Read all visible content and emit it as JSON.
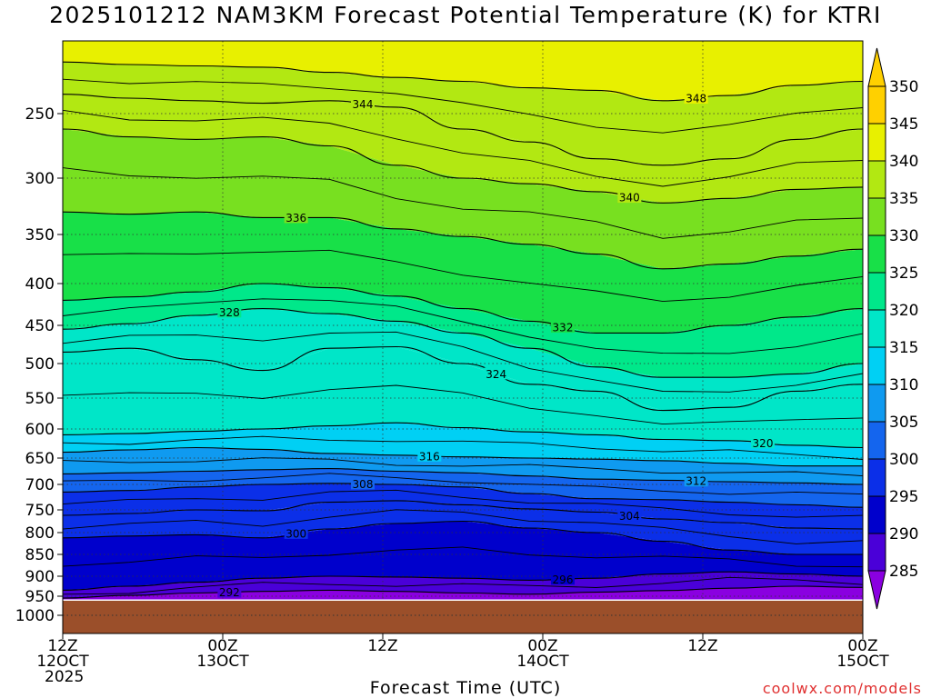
{
  "chart_data": {
    "type": "heatmap",
    "title": "2025101212 NAM3KM Forecast Potential Temperature (K) for KTRI",
    "xlabel": "Forecast Time (UTC)",
    "ylabel": "",
    "y_ticks": [
      "250",
      "300",
      "350",
      "400",
      "450",
      "500",
      "550",
      "600",
      "650",
      "700",
      "750",
      "800",
      "850",
      "900",
      "950",
      "1000"
    ],
    "y_tick_values": [
      250,
      300,
      350,
      400,
      450,
      500,
      550,
      600,
      650,
      700,
      750,
      800,
      850,
      900,
      950,
      1000
    ],
    "ylim": [
      200,
      1030
    ],
    "x_ticks": [
      {
        "hour": 0,
        "top": "12Z",
        "mid": "12OCT",
        "bottom": "2025"
      },
      {
        "hour": 12,
        "top": "00Z",
        "mid": "13OCT",
        "bottom": ""
      },
      {
        "hour": 24,
        "top": "12Z",
        "mid": "",
        "bottom": ""
      },
      {
        "hour": 36,
        "top": "00Z",
        "mid": "14OCT",
        "bottom": ""
      },
      {
        "hour": 48,
        "top": "12Z",
        "mid": "",
        "bottom": ""
      },
      {
        "hour": 60,
        "top": "00Z",
        "mid": "15OCT",
        "bottom": ""
      }
    ],
    "xlim": [
      0,
      60
    ],
    "ground_pressure": 960,
    "ground_color": "#9b4f2a",
    "colorbar": {
      "levels": [
        "285",
        "290",
        "295",
        "300",
        "305",
        "310",
        "315",
        "320",
        "325",
        "330",
        "335",
        "340",
        "345",
        "350"
      ],
      "colors": [
        "#8a00e0",
        "#4a00d8",
        "#0000cc",
        "#0b2fe8",
        "#1465ee",
        "#0f9af0",
        "#00d0f4",
        "#00e6c8",
        "#00e88a",
        "#18e048",
        "#78e020",
        "#b2e812",
        "#e8f000",
        "#ffd000"
      ]
    },
    "isentropes": [
      {
        "value": 292,
        "label": "292",
        "p": [
          955,
          948,
          942,
          938,
          935,
          938,
          942,
          945,
          940,
          936,
          930,
          925,
          928
        ]
      },
      {
        "value": 296,
        "label": "296",
        "p": [
          935,
          925,
          915,
          905,
          900,
          902,
          905,
          910,
          905,
          895,
          890,
          895,
          900
        ]
      },
      {
        "value": 300,
        "label": "300",
        "p": [
          812,
          808,
          805,
          812,
          792,
          780,
          775,
          790,
          800,
          820,
          840,
          850,
          850
        ]
      },
      {
        "value": 304,
        "label": "304",
        "p": [
          762,
          758,
          750,
          752,
          735,
          732,
          740,
          748,
          755,
          770,
          778,
          790,
          792
        ]
      },
      {
        "value": 308,
        "label": "308",
        "p": [
          715,
          712,
          705,
          700,
          698,
          700,
          705,
          718,
          728,
          730,
          735,
          740,
          745
        ]
      },
      {
        "value": 312,
        "label": "312",
        "p": [
          680,
          678,
          675,
          672,
          670,
          675,
          678,
          684,
          690,
          692,
          695,
          697,
          700
        ]
      },
      {
        "value": 316,
        "label": "316",
        "p": [
          640,
          636,
          632,
          635,
          642,
          645,
          648,
          650,
          652,
          655,
          660,
          665,
          665
        ]
      },
      {
        "value": 320,
        "label": "320",
        "p": [
          610,
          608,
          604,
          600,
          595,
          590,
          598,
          605,
          610,
          618,
          620,
          628,
          632
        ]
      },
      {
        "value": 324,
        "label": "324",
        "p": [
          485,
          480,
          495,
          510,
          480,
          478,
          500,
          530,
          540,
          570,
          565,
          540,
          530
        ]
      },
      {
        "value": 328,
        "label": "328",
        "p": [
          455,
          448,
          438,
          430,
          436,
          445,
          460,
          480,
          505,
          520,
          520,
          515,
          500
        ]
      },
      {
        "value": 332,
        "label": "332",
        "p": [
          420,
          416,
          410,
          400,
          405,
          415,
          430,
          445,
          460,
          460,
          450,
          440,
          430
        ]
      },
      {
        "value": 336,
        "label": "336",
        "p": [
          330,
          332,
          330,
          335,
          335,
          345,
          352,
          360,
          370,
          385,
          380,
          372,
          365
        ]
      },
      {
        "value": 340,
        "label": "340",
        "p": [
          262,
          268,
          270,
          268,
          275,
          290,
          300,
          305,
          312,
          322,
          318,
          310,
          308
        ]
      },
      {
        "value": 344,
        "label": "344",
        "p": [
          235,
          238,
          240,
          242,
          240,
          245,
          262,
          272,
          285,
          290,
          285,
          270,
          262
        ]
      },
      {
        "value": 348,
        "label": "348",
        "p": [
          210,
          212,
          213,
          214,
          218,
          222,
          225,
          230,
          232,
          240,
          236,
          228,
          225
        ]
      }
    ],
    "isentrope_hours": [
      0,
      5,
      10,
      15,
      20,
      25,
      30,
      35,
      40,
      45,
      50,
      55,
      60
    ]
  },
  "xaxis_title": "Forecast Time (UTC)",
  "credit": "coolwx.com/models"
}
